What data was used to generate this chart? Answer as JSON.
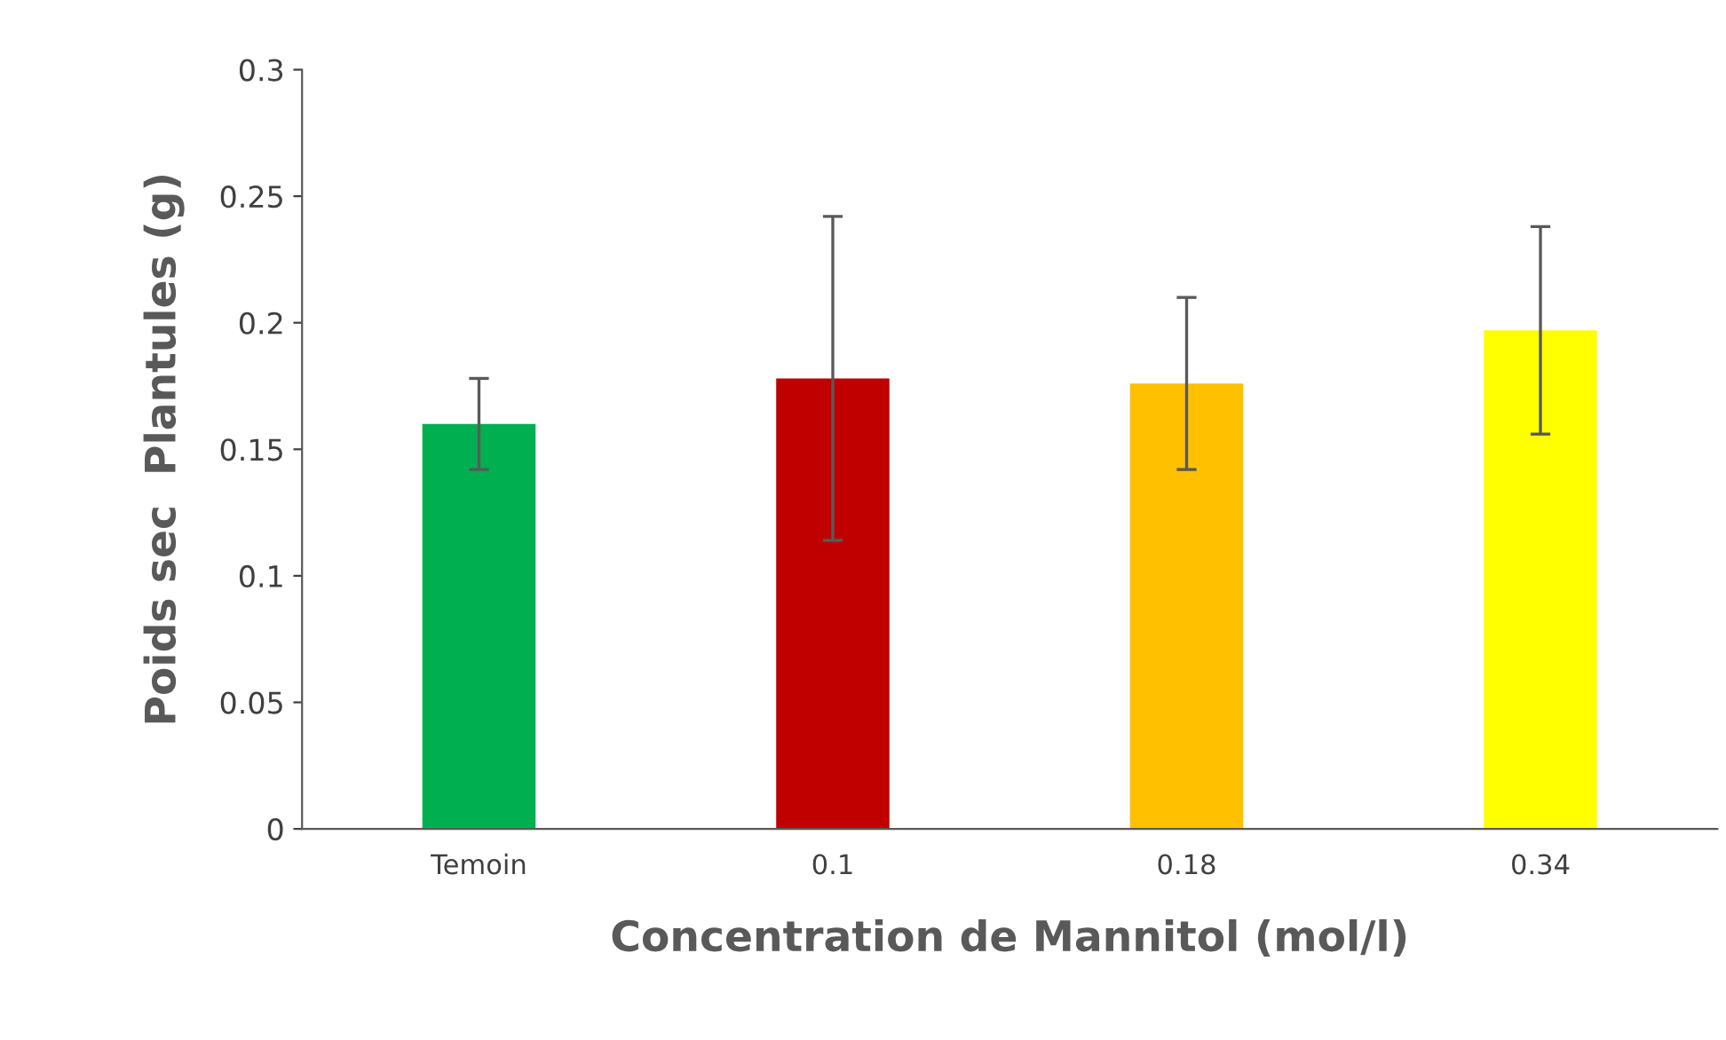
{
  "chart_data": {
    "type": "bar",
    "xlabel": "Concentration de Mannitol (mol/l)",
    "ylabel": "Poids sec  Plantules (g)",
    "categories": [
      "Temoin",
      "0.1",
      "0.18",
      "0.34"
    ],
    "values": [
      0.16,
      0.178,
      0.176,
      0.197
    ],
    "colors": [
      "#00b050",
      "#c00000",
      "#ffc000",
      "#ffff00"
    ],
    "errors": [
      0.018,
      0.064,
      0.034,
      0.041
    ],
    "ylim": [
      0,
      0.3
    ],
    "yticks": [
      {
        "value": 0,
        "label": "0"
      },
      {
        "value": 0.05,
        "label": "0.05"
      },
      {
        "value": 0.1,
        "label": "0.1"
      },
      {
        "value": 0.15,
        "label": "0.15"
      },
      {
        "value": 0.2,
        "label": "0.2"
      },
      {
        "value": 0.25,
        "label": "0.25"
      },
      {
        "value": 0.3,
        "label": "0.3"
      }
    ],
    "grid": false
  }
}
